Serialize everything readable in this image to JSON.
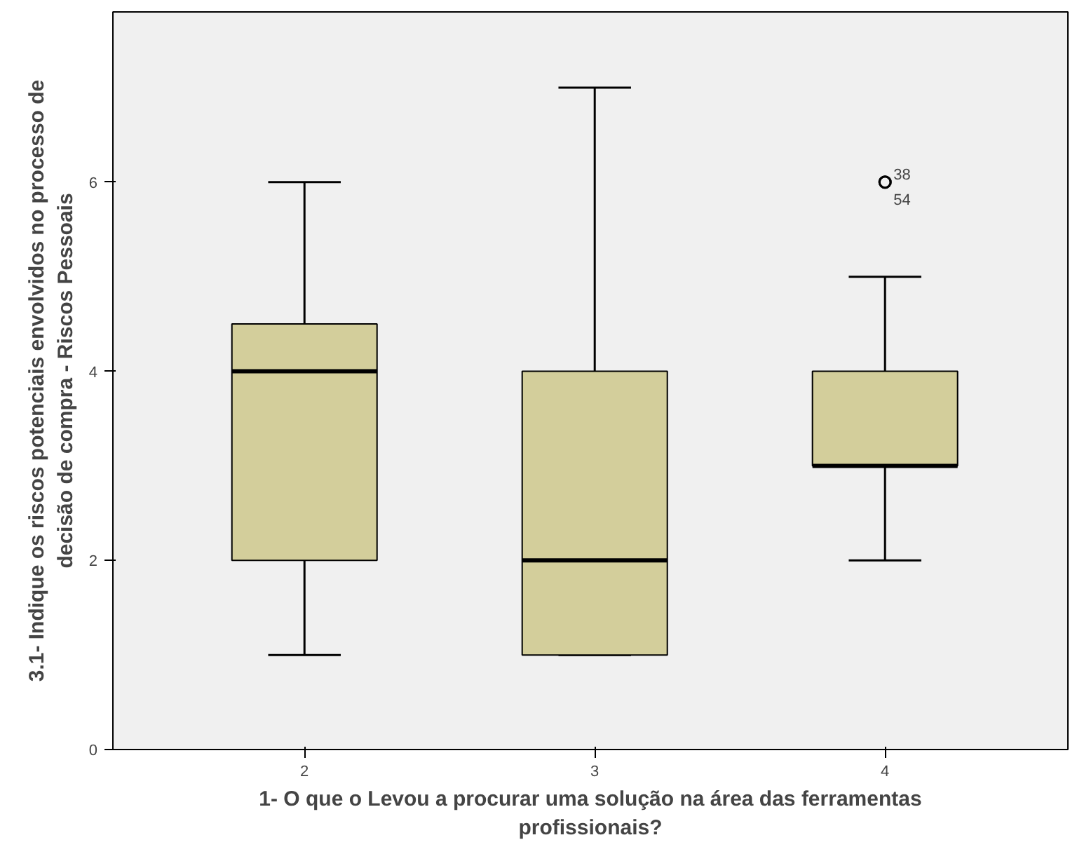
{
  "chart_data": {
    "type": "box",
    "xlabel": "1- O que o Levou a procurar uma solução na área das ferramentas profissionais?",
    "ylabel": "3.1- Indique os riscos potenciais envolvidos no processo de decisão de compra - Riscos Pessoais",
    "categories": [
      "2",
      "3",
      "4"
    ],
    "boxes": [
      {
        "low": 1,
        "q1": 2,
        "median": 4,
        "q3": 4.5,
        "high": 6
      },
      {
        "low": 1,
        "q1": 1,
        "median": 2,
        "q3": 4,
        "high": 7
      },
      {
        "low": 2,
        "q1": 3,
        "median": 3,
        "q3": 4,
        "high": 5,
        "outliers": [
          6,
          6
        ]
      }
    ],
    "color": "#d3ce9b",
    "ylim": [
      0,
      7.8
    ],
    "yticks": [
      0,
      2,
      4,
      6
    ],
    "grid": false,
    "annotations": [
      "38",
      "54"
    ]
  }
}
